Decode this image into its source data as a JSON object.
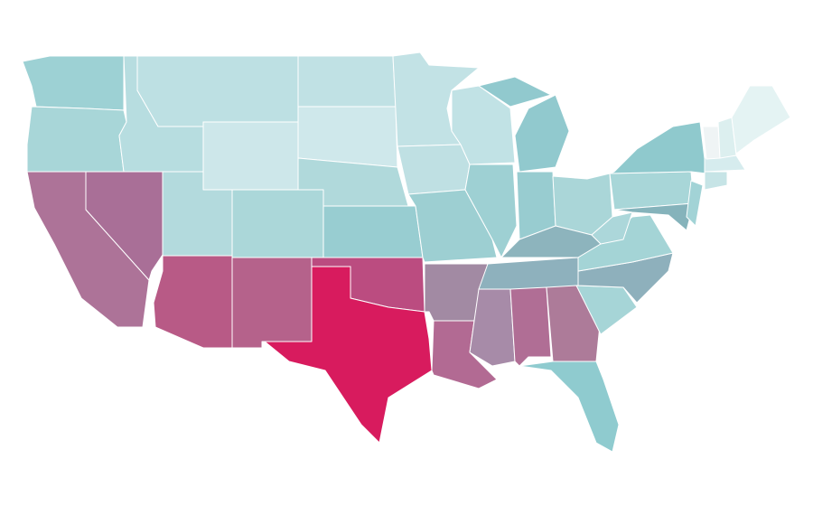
{
  "map": {
    "region_colors": [
      "#9dd1d4",
      "#a8d6d8",
      "#ad7398",
      "#a96f97",
      "#b7dde0",
      "#bde0e3",
      "#cde7ea",
      "#b3dadd",
      "#abd7d9",
      "#b85a86",
      "#b5628b",
      "#c0e1e4",
      "#cfe8eb",
      "#b0d9db",
      "#98cdd1",
      "#bb4c80",
      "#d81b5e",
      "#c2e2e5",
      "#bfe0e3",
      "#9dcfd2",
      "#a28aa3",
      "#b26a93",
      "#c1e2e5",
      "#9ed0d3",
      "#91c9ce",
      "#98ccd0",
      "#aad6d8",
      "#8db4bd",
      "#8eb1bd",
      "#a78ba8",
      "#b06e95",
      "#ad7b99",
      "#8fcbcf",
      "#a6d5d7",
      "#8eb0bc",
      "#a4d4d6",
      "#acd7da",
      "#a8d6d8",
      "#8fc9cd",
      "#85b3bb",
      "#a2d3d6",
      "#c6e4e6",
      "#d6ecee",
      "#eff4f5",
      "#dcefef",
      "#e4f3f3"
    ]
  }
}
